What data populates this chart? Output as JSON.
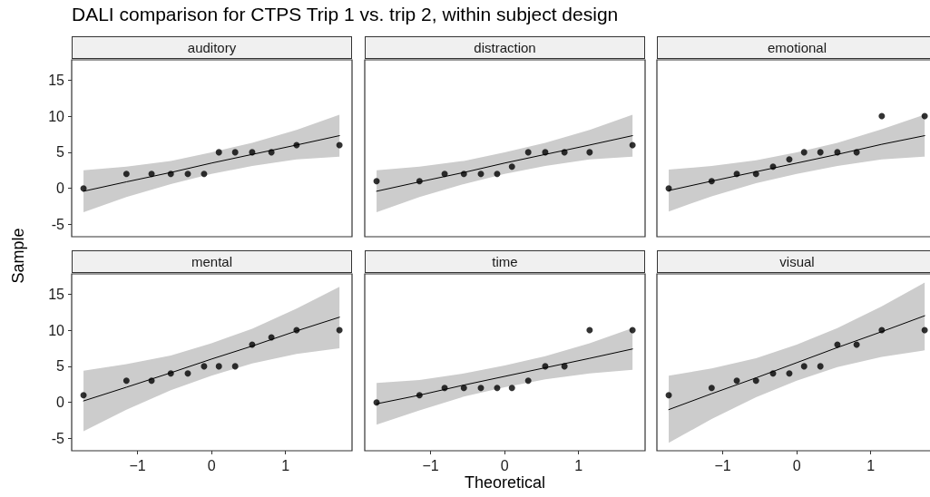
{
  "chart_data": [
    {
      "type": "scatter",
      "title": "auditory",
      "annotations": [
        "DALI comparison for CTPS Trip 1 vs. trip 2, within subject design"
      ],
      "ylabel": "Sample",
      "xlim": [
        -1.89,
        1.9
      ],
      "ylim": [
        -6.7,
        17.8
      ],
      "xticks": [
        -1,
        0,
        1
      ],
      "yticks": [
        -5,
        0,
        5,
        10,
        15
      ],
      "tick_labels": "y",
      "grid": false,
      "series": [
        {
          "type": "scatter",
          "color": "#000000",
          "marker": "circle",
          "x": [
            -1.73,
            -1.15,
            -0.81,
            -0.55,
            -0.32,
            -0.1,
            0.1,
            0.32,
            0.55,
            0.81,
            1.15,
            1.73
          ],
          "values": [
            0,
            2,
            2,
            2,
            2,
            2,
            5,
            5,
            5,
            5,
            6,
            6
          ]
        },
        {
          "type": "line",
          "color": "#000000",
          "marker": "none",
          "line_style": "solid",
          "x": [
            -1.73,
            -1.15,
            -0.55,
            0,
            0.55,
            1.15,
            1.73
          ],
          "values": [
            -0.4,
            0.9,
            2.2,
            3.5,
            4.7,
            6.0,
            7.3
          ],
          "lower": [
            -3.3,
            -1.2,
            0.6,
            2.0,
            3.1,
            4.0,
            4.4
          ],
          "upper": [
            2.5,
            3.0,
            3.8,
            5.0,
            6.3,
            8.1,
            10.2
          ]
        }
      ]
    },
    {
      "type": "scatter",
      "title": "distraction",
      "xlim": [
        -1.89,
        1.9
      ],
      "ylim": [
        -6.7,
        17.8
      ],
      "xticks": [
        -1,
        0,
        1
      ],
      "yticks": [
        -5,
        0,
        5,
        10,
        15
      ],
      "tick_labels": false,
      "grid": false,
      "series": [
        {
          "type": "scatter",
          "color": "#000000",
          "marker": "circle",
          "x": [
            -1.73,
            -1.15,
            -0.81,
            -0.55,
            -0.32,
            -0.1,
            0.1,
            0.32,
            0.55,
            0.81,
            1.15,
            1.73
          ],
          "values": [
            1,
            1,
            2,
            2,
            2,
            2,
            3,
            5,
            5,
            5,
            5,
            6
          ]
        },
        {
          "type": "line",
          "color": "#000000",
          "marker": "none",
          "line_style": "solid",
          "x": [
            -1.73,
            -1.15,
            -0.55,
            0,
            0.55,
            1.15,
            1.73
          ],
          "values": [
            -0.4,
            0.9,
            2.2,
            3.5,
            4.7,
            6.0,
            7.3
          ],
          "lower": [
            -3.3,
            -1.2,
            0.6,
            2.0,
            3.1,
            4.0,
            4.4
          ],
          "upper": [
            2.5,
            3.0,
            3.8,
            5.0,
            6.3,
            8.1,
            10.2
          ]
        }
      ]
    },
    {
      "type": "scatter",
      "title": "emotional",
      "xlim": [
        -1.89,
        1.9
      ],
      "ylim": [
        -6.7,
        17.8
      ],
      "xticks": [
        -1,
        0,
        1
      ],
      "yticks": [
        -5,
        0,
        5,
        10,
        15
      ],
      "tick_labels": false,
      "grid": false,
      "series": [
        {
          "type": "scatter",
          "color": "#000000",
          "marker": "circle",
          "x": [
            -1.73,
            -1.15,
            -0.81,
            -0.55,
            -0.32,
            -0.1,
            0.1,
            0.32,
            0.55,
            0.81,
            1.15,
            1.73
          ],
          "values": [
            0,
            1,
            2,
            2,
            3,
            4,
            5,
            5,
            5,
            5,
            10,
            10
          ]
        },
        {
          "type": "line",
          "color": "#000000",
          "marker": "none",
          "line_style": "solid",
          "x": [
            -1.73,
            -1.15,
            -0.55,
            0,
            0.55,
            1.15,
            1.73
          ],
          "values": [
            -0.3,
            1.0,
            2.3,
            3.5,
            4.7,
            6.1,
            7.3
          ],
          "lower": [
            -3.2,
            -1.1,
            0.7,
            2.0,
            3.1,
            4.0,
            4.4
          ],
          "upper": [
            2.6,
            3.1,
            3.9,
            5.0,
            6.3,
            8.2,
            10.2
          ]
        }
      ]
    },
    {
      "type": "scatter",
      "title": "mental",
      "xlim": [
        -1.89,
        1.9
      ],
      "ylim": [
        -6.7,
        17.8
      ],
      "xticks": [
        -1,
        0,
        1
      ],
      "yticks": [
        -5,
        0,
        5,
        10,
        15
      ],
      "grid": false,
      "series": [
        {
          "type": "scatter",
          "color": "#000000",
          "marker": "circle",
          "x": [
            -1.73,
            -1.15,
            -0.81,
            -0.55,
            -0.32,
            -0.1,
            0.1,
            0.32,
            0.55,
            0.81,
            1.15,
            1.73
          ],
          "values": [
            1,
            3,
            3,
            4,
            4,
            5,
            5,
            5,
            8,
            9,
            10,
            10
          ]
        },
        {
          "type": "line",
          "color": "#000000",
          "marker": "none",
          "line_style": "solid",
          "x": [
            -1.73,
            -1.15,
            -0.55,
            0,
            0.55,
            1.15,
            1.73
          ],
          "values": [
            0.2,
            2.1,
            4.1,
            6.0,
            7.8,
            9.9,
            11.8
          ],
          "lower": [
            -4.0,
            -1.0,
            1.7,
            3.7,
            5.4,
            6.7,
            7.5
          ],
          "upper": [
            4.4,
            5.3,
            6.5,
            8.2,
            10.2,
            13.0,
            16.0
          ]
        }
      ]
    },
    {
      "type": "scatter",
      "title": "time",
      "xlabel": "Theoretical",
      "xlim": [
        -1.89,
        1.9
      ],
      "ylim": [
        -6.7,
        17.8
      ],
      "xticks": [
        -1,
        0,
        1
      ],
      "yticks": [
        -5,
        0,
        5,
        10,
        15
      ],
      "tick_labels": "x",
      "grid": false,
      "series": [
        {
          "type": "scatter",
          "color": "#000000",
          "marker": "circle",
          "x": [
            -1.73,
            -1.15,
            -0.81,
            -0.55,
            -0.32,
            -0.1,
            0.1,
            0.32,
            0.55,
            0.81,
            1.15,
            1.73
          ],
          "values": [
            0,
            1,
            2,
            2,
            2,
            2,
            2,
            3,
            5,
            5,
            10,
            10
          ]
        },
        {
          "type": "line",
          "color": "#000000",
          "marker": "none",
          "line_style": "solid",
          "x": [
            -1.73,
            -1.15,
            -0.55,
            0,
            0.55,
            1.15,
            1.73
          ],
          "values": [
            -0.2,
            1.0,
            2.4,
            3.6,
            4.8,
            6.1,
            7.4
          ],
          "lower": [
            -3.1,
            -1.1,
            0.8,
            2.1,
            3.2,
            4.0,
            4.5
          ],
          "upper": [
            2.7,
            3.1,
            4.0,
            5.1,
            6.4,
            8.2,
            10.3
          ]
        }
      ]
    },
    {
      "type": "scatter",
      "title": "visual",
      "xlim": [
        -1.89,
        1.9
      ],
      "ylim": [
        -6.7,
        17.8
      ],
      "xticks": [
        -1,
        0,
        1
      ],
      "yticks": [
        -5,
        0,
        5,
        10,
        15
      ],
      "tick_labels": "x",
      "grid": false,
      "series": [
        {
          "type": "scatter",
          "color": "#000000",
          "marker": "circle",
          "x": [
            -1.73,
            -1.15,
            -0.81,
            -0.55,
            -0.32,
            -0.1,
            0.1,
            0.32,
            0.55,
            0.81,
            1.15,
            1.73
          ],
          "values": [
            1,
            2,
            3,
            3,
            4,
            4,
            5,
            5,
            8,
            8,
            10,
            10
          ]
        },
        {
          "type": "line",
          "color": "#000000",
          "marker": "none",
          "line_style": "solid",
          "x": [
            -1.73,
            -1.15,
            -0.55,
            0,
            0.55,
            1.15,
            1.73
          ],
          "values": [
            -1.0,
            1.2,
            3.4,
            5.5,
            7.6,
            9.8,
            12.0
          ],
          "lower": [
            -5.6,
            -2.3,
            0.7,
            3.0,
            4.9,
            6.3,
            7.2
          ],
          "upper": [
            3.7,
            4.7,
            6.1,
            8.0,
            10.3,
            13.3,
            16.6
          ]
        }
      ]
    }
  ]
}
